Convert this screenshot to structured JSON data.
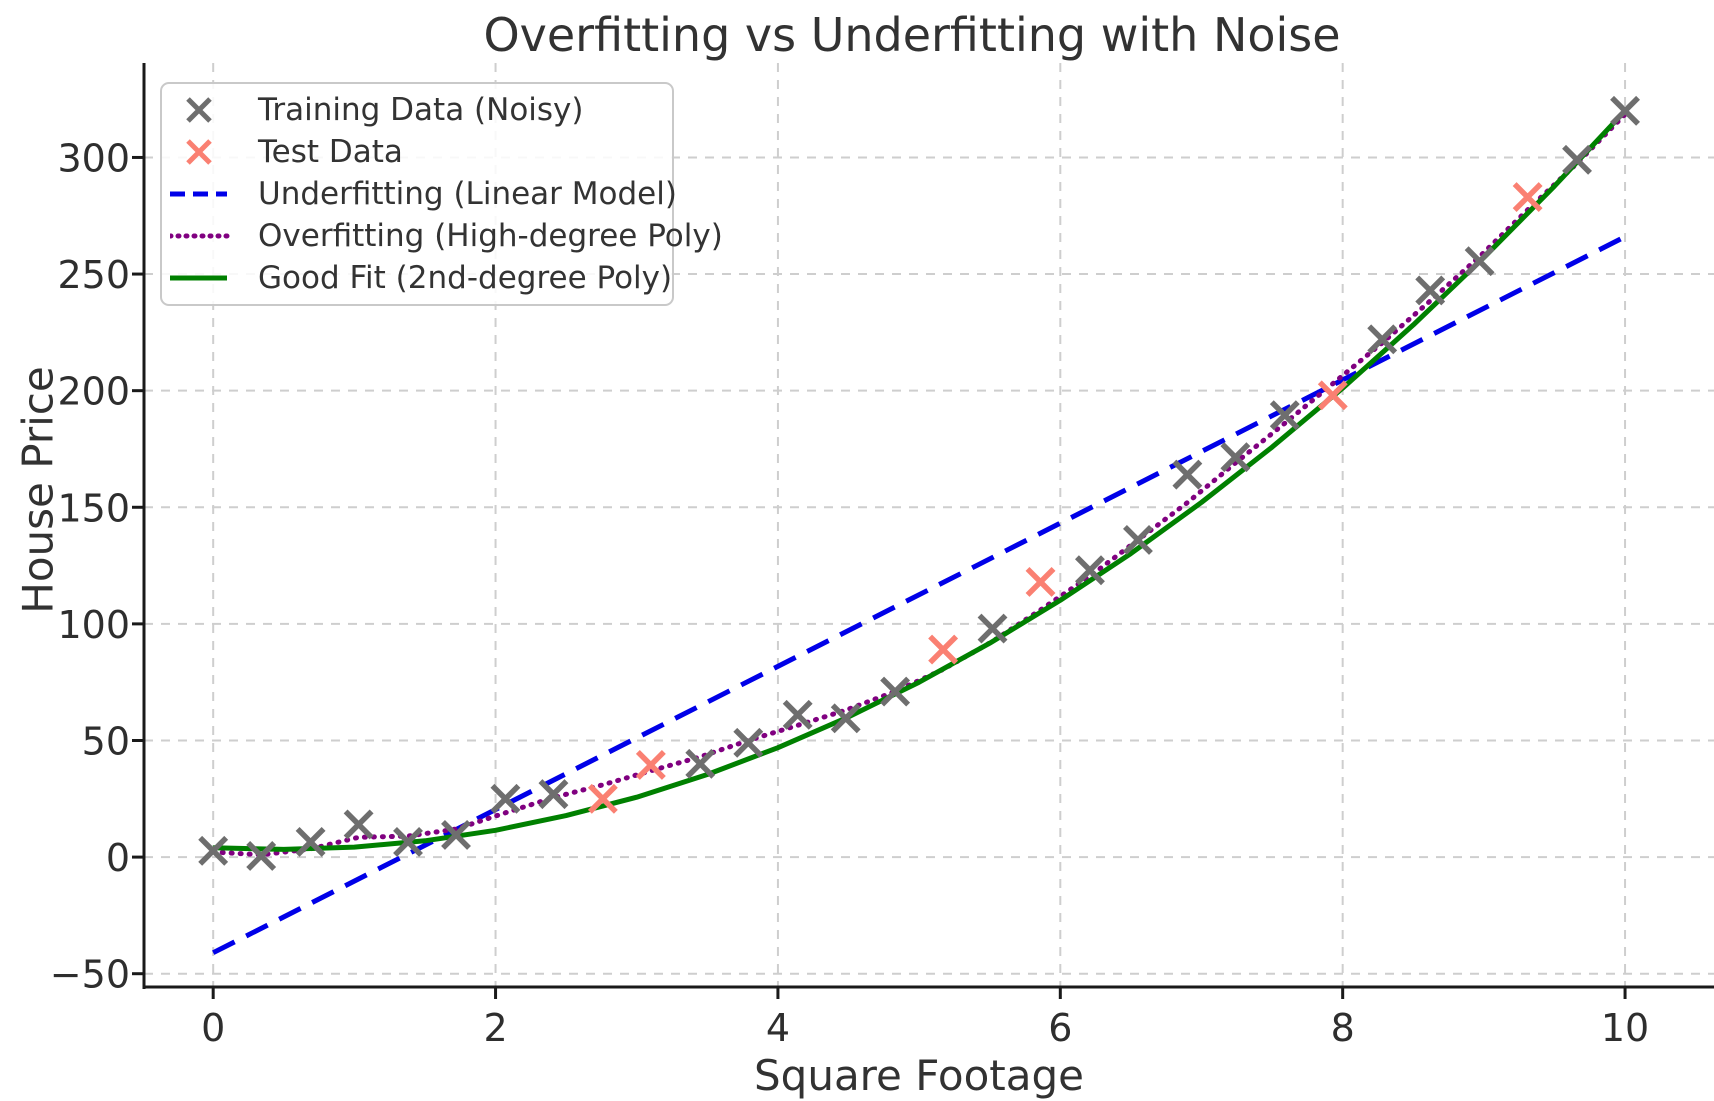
{
  "colors": {
    "grid": "#c9c9c9",
    "spine": "#1a1a1a",
    "text": "#2e2e2e",
    "background": "#ffffff"
  },
  "chart_data": {
    "type": "scatter",
    "title": "Overfitting vs Underfitting with Noise",
    "xlabel": "Square Footage",
    "ylabel": "House Price",
    "x_ticks": [
      0,
      2,
      4,
      6,
      8,
      10
    ],
    "y_ticks": [
      -50,
      0,
      50,
      100,
      150,
      200,
      250,
      300
    ],
    "xlim_visible": [
      -0.49,
      10.63
    ],
    "ylim_visible": [
      -55.7,
      340.5
    ],
    "grid": true,
    "legend_position": "upper left",
    "series": [
      {
        "name": "Training Data (Noisy)",
        "kind": "scatter",
        "marker": "x",
        "color": "#6e6e6e",
        "points": [
          [
            0.0,
            2.7
          ],
          [
            0.34,
            0.5
          ],
          [
            0.69,
            6.5
          ],
          [
            1.03,
            14
          ],
          [
            1.38,
            6.5
          ],
          [
            1.72,
            9.5
          ],
          [
            2.07,
            25
          ],
          [
            2.41,
            27
          ],
          [
            3.45,
            40
          ],
          [
            3.79,
            49
          ],
          [
            4.14,
            61
          ],
          [
            4.48,
            59.5
          ],
          [
            4.83,
            71
          ],
          [
            5.52,
            98
          ],
          [
            6.21,
            123
          ],
          [
            6.55,
            136
          ],
          [
            6.9,
            164
          ],
          [
            7.24,
            171.5
          ],
          [
            7.59,
            189.5
          ],
          [
            8.28,
            222
          ],
          [
            8.62,
            243
          ],
          [
            8.97,
            255.5
          ],
          [
            9.66,
            299
          ],
          [
            10.0,
            320
          ]
        ]
      },
      {
        "name": "Test Data",
        "kind": "scatter",
        "marker": "x",
        "color": "#fa8072",
        "points": [
          [
            2.76,
            25
          ],
          [
            3.1,
            39.5
          ],
          [
            5.17,
            89
          ],
          [
            5.86,
            118
          ],
          [
            7.93,
            198
          ],
          [
            9.31,
            283
          ]
        ]
      },
      {
        "name": "Underfitting (Linear Model)",
        "kind": "line",
        "style": "dashed",
        "color": "#0000e8",
        "points": [
          [
            0,
            -41
          ],
          [
            10,
            266
          ]
        ]
      },
      {
        "name": "Overfitting (High-degree Poly)",
        "kind": "line",
        "style": "dotted",
        "color": "#800080",
        "points": [
          [
            0,
            2.2
          ],
          [
            0.34,
            1
          ],
          [
            0.69,
            3.5
          ],
          [
            1.03,
            8.5
          ],
          [
            1.38,
            9
          ],
          [
            1.72,
            12
          ],
          [
            2.07,
            19
          ],
          [
            2.41,
            25.5
          ],
          [
            2.76,
            31
          ],
          [
            3.1,
            37
          ],
          [
            3.45,
            43
          ],
          [
            3.79,
            50
          ],
          [
            4.14,
            56.5
          ],
          [
            4.48,
            63
          ],
          [
            4.83,
            71
          ],
          [
            5.17,
            80.5
          ],
          [
            5.52,
            92.5
          ],
          [
            5.86,
            106
          ],
          [
            6.21,
            120.5
          ],
          [
            6.55,
            136
          ],
          [
            6.9,
            152
          ],
          [
            7.24,
            169
          ],
          [
            7.59,
            186
          ],
          [
            7.93,
            203
          ],
          [
            8.28,
            220.5
          ],
          [
            8.62,
            238.5
          ],
          [
            8.97,
            257.5
          ],
          [
            9.31,
            277.5
          ],
          [
            9.66,
            297.5
          ],
          [
            10,
            318.5
          ]
        ]
      },
      {
        "name": "Good Fit (2nd-degree Poly)",
        "kind": "line",
        "style": "solid",
        "color": "#008000",
        "points": [
          [
            0,
            4
          ],
          [
            0.5,
            3.3
          ],
          [
            1,
            4.3
          ],
          [
            1.5,
            7
          ],
          [
            2,
            11.5
          ],
          [
            2.5,
            17.8
          ],
          [
            3,
            25.7
          ],
          [
            3.5,
            35.4
          ],
          [
            4,
            46.9
          ],
          [
            4.5,
            60.1
          ],
          [
            5,
            75
          ],
          [
            5.5,
            91.7
          ],
          [
            6,
            110.1
          ],
          [
            6.5,
            130.2
          ],
          [
            7,
            152.1
          ],
          [
            7.5,
            175.8
          ],
          [
            8,
            201.1
          ],
          [
            8.5,
            228.2
          ],
          [
            9,
            257.1
          ],
          [
            9.5,
            287.7
          ],
          [
            10,
            320
          ]
        ]
      }
    ]
  }
}
